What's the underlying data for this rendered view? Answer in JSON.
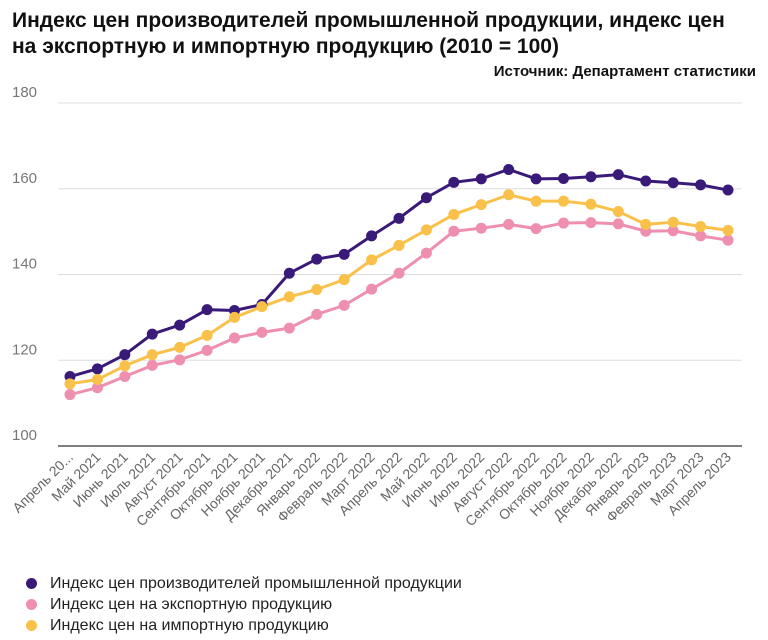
{
  "chart_data": {
    "type": "line",
    "title": "Индекс цен производителей промышленной продукции, индекс цен на экспортную и импортную продукцию (2010 = 100)",
    "source": "Источник: Департамент статистики",
    "categories": [
      "Апрель 20...",
      "Май 2021",
      "Июнь 2021",
      "Июль 2021",
      "Август 2021",
      "Сентябрь 2021",
      "Октябрь 2021",
      "Ноябрь 2021",
      "Декабрь 2021",
      "Январь 2022",
      "Февраль 2022",
      "Март 2022",
      "Апрель 2022",
      "Май 2022",
      "Июнь 2022",
      "Июль 2022",
      "Август 2022",
      "Сентябрь 2022",
      "Октябрь 2022",
      "Ноябрь 2022",
      "Декабрь 2022",
      "Январь 2023",
      "Февраль 2023",
      "Март 2023",
      "Апрель 2023"
    ],
    "ylim": [
      100,
      180
    ],
    "yticks": [
      100,
      120,
      140,
      160,
      180
    ],
    "grid": true,
    "legend_position": "bottom-left",
    "series": [
      {
        "name": "Индекс цен производителей промышленной продукции",
        "color": "#3a1a78",
        "values": [
          116.2,
          118.0,
          121.3,
          126.1,
          128.2,
          131.8,
          131.6,
          133.0,
          140.3,
          143.6,
          144.7,
          149.0,
          153.1,
          157.9,
          161.5,
          162.3,
          164.5,
          162.3,
          162.4,
          162.8,
          163.3,
          161.8,
          161.4,
          160.9,
          159.7
        ]
      },
      {
        "name": "Индекс цен на экспортную продукцию",
        "color": "#ef8fb0",
        "values": [
          112.0,
          113.6,
          116.2,
          118.8,
          120.1,
          122.3,
          125.2,
          126.5,
          127.5,
          130.7,
          132.8,
          136.6,
          140.3,
          145.0,
          150.1,
          150.8,
          151.7,
          150.7,
          152.0,
          152.1,
          151.8,
          150.1,
          150.2,
          149.0,
          148.0
        ]
      },
      {
        "name": "Индекс цен на импортную продукцию",
        "color": "#f9c14a",
        "values": [
          114.5,
          115.5,
          118.7,
          121.3,
          123.0,
          125.8,
          130.0,
          132.5,
          134.8,
          136.5,
          138.8,
          143.4,
          146.8,
          150.4,
          154.0,
          156.3,
          158.6,
          157.1,
          157.1,
          156.4,
          154.7,
          151.7,
          152.2,
          151.2,
          150.3
        ]
      }
    ]
  }
}
